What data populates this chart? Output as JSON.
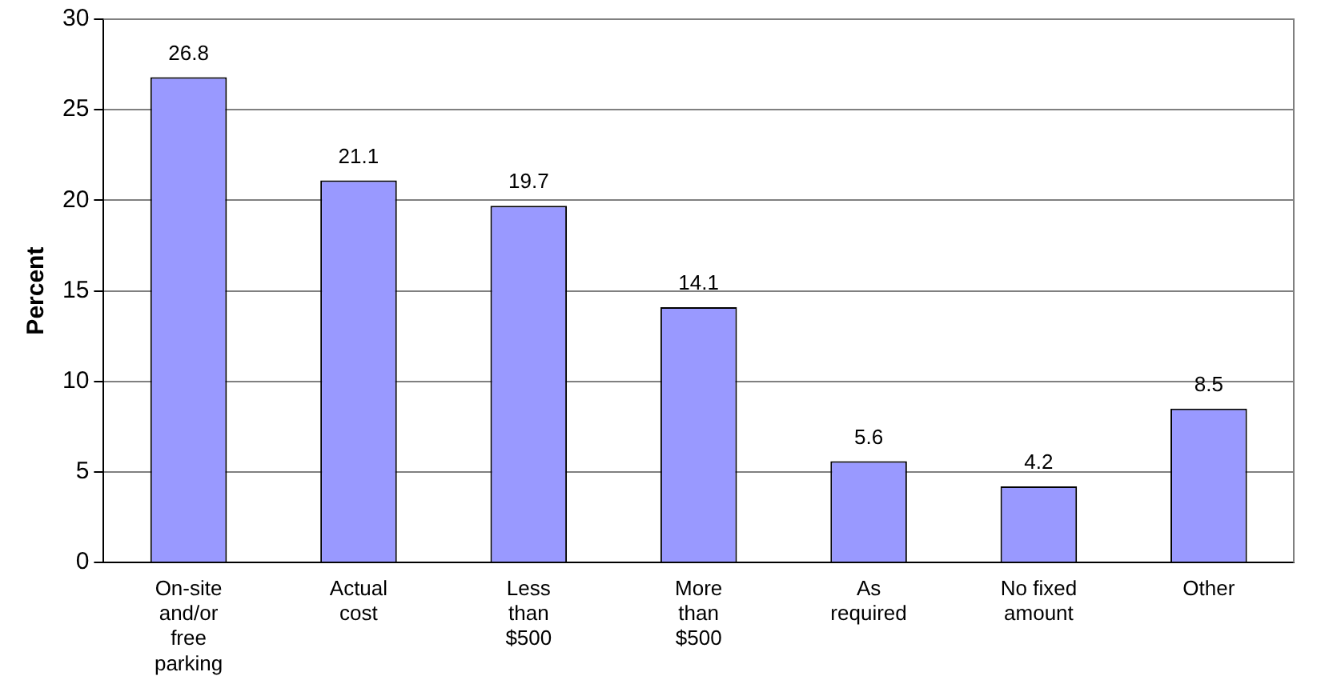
{
  "chart_data": {
    "type": "bar",
    "ylabel": "Percent",
    "categories": [
      "On-site and/or free parking",
      "Actual cost",
      "Less than $500",
      "More than $500",
      "As required",
      "No fixed amount",
      "Other"
    ],
    "values": [
      26.8,
      21.1,
      19.7,
      14.1,
      5.6,
      4.2,
      8.5
    ],
    "color": "#9999ff",
    "ylim": [
      0,
      30
    ],
    "yticks": [
      0,
      5,
      10,
      15,
      20,
      25,
      30
    ],
    "grid": "y",
    "legend": false,
    "data_labels": true
  }
}
